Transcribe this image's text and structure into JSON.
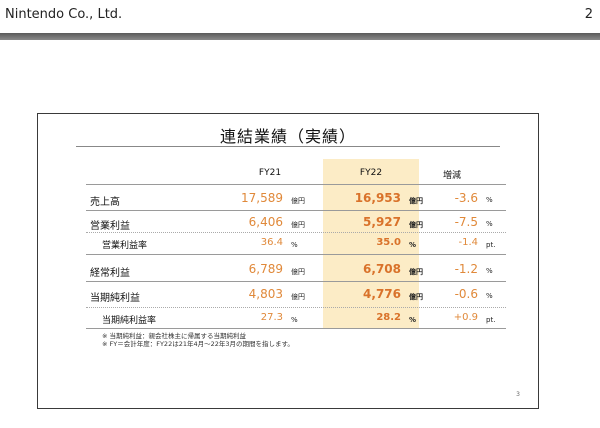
{
  "header": {
    "company": "Nintendo Co., Ltd.",
    "page_number": "2"
  },
  "slide": {
    "title": "連結業績（実績）",
    "columns": [
      "FY21",
      "FY22",
      "増減"
    ],
    "rows": [
      {
        "label": "売上高",
        "fy21": "17,589",
        "fy21_unit": "億円",
        "fy22": "16,953",
        "fy22_unit": "億円",
        "change": "-3.6",
        "change_unit": "%"
      },
      {
        "label": "営業利益",
        "fy21": "6,406",
        "fy21_unit": "億円",
        "fy22": "5,927",
        "fy22_unit": "億円",
        "change": "-7.5",
        "change_unit": "%"
      },
      {
        "label": "営業利益率",
        "fy21": "36.4",
        "fy21_unit": "%",
        "fy22": "35.0",
        "fy22_unit": "%",
        "change": "-1.4",
        "change_unit": "pt."
      },
      {
        "label": "経常利益",
        "fy21": "6,789",
        "fy21_unit": "億円",
        "fy22": "6,708",
        "fy22_unit": "億円",
        "change": "-1.2",
        "change_unit": "%"
      },
      {
        "label": "当期純利益",
        "fy21": "4,803",
        "fy21_unit": "億円",
        "fy22": "4,776",
        "fy22_unit": "億円",
        "change": "-0.6",
        "change_unit": "%"
      },
      {
        "label": "当期純利益率",
        "fy21": "27.3",
        "fy21_unit": "%",
        "fy22": "28.2",
        "fy22_unit": "%",
        "change": "+0.9",
        "change_unit": "pt."
      }
    ],
    "notes": [
      "※ 当期純利益：親会社株主に帰属する当期純利益",
      "※ FY＝会計年度：FY22は21年4月～22年3月の期間を指します。"
    ],
    "slide_number": "3"
  },
  "colors": {
    "highlight": "#fcecc6",
    "value_orange": "#e0893a",
    "value_orange_bold": "#d9722a"
  }
}
